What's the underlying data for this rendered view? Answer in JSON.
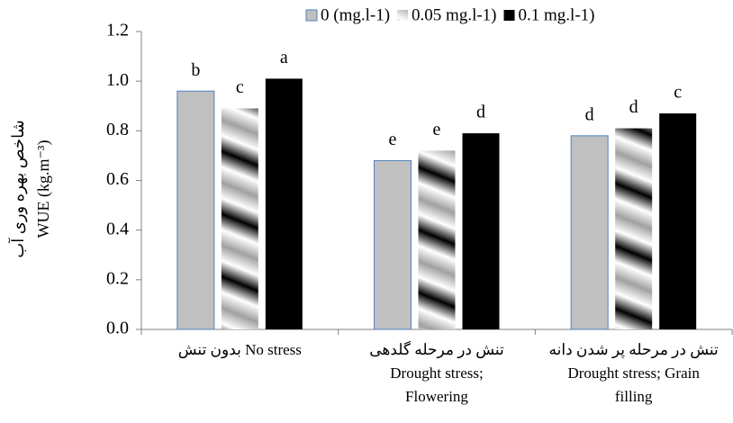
{
  "chart_data": {
    "type": "bar",
    "ylabel": "WUE  (kg.m⁻³)",
    "ylabel_fa": "شاخص بهره وری آب",
    "categories": [
      [
        "بدون تنش No stress"
      ],
      [
        "تنش در مرحله گلدهی",
        "Drought stress;",
        "Flowering"
      ],
      [
        "تنش در مرحله پر شدن دانه",
        "Drought stress; Grain",
        "filling"
      ]
    ],
    "series": [
      {
        "name": "0 (mg.l-1)",
        "color": "#c0c0c0",
        "values": [
          0.96,
          0.68,
          0.78
        ],
        "value_labels": [
          "b",
          "e",
          "d"
        ]
      },
      {
        "name": "0.05 mg.l-1)",
        "color": "#a0a0a0",
        "values": [
          0.89,
          0.72,
          0.81
        ],
        "value_labels": [
          "c",
          "e",
          "d"
        ]
      },
      {
        "name": "0.1 mg.l-1)",
        "color": "#000000",
        "values": [
          1.01,
          0.79,
          0.87
        ],
        "value_labels": [
          "a",
          "d",
          "c"
        ]
      }
    ],
    "ylim": [
      0,
      1.2
    ],
    "yticks": [
      {
        "value": 0,
        "label": "0.0"
      },
      0.2,
      0.4,
      0.6,
      0.8,
      {
        "value": 1,
        "label": "1.0"
      },
      1.2
    ],
    "legend": "top"
  }
}
